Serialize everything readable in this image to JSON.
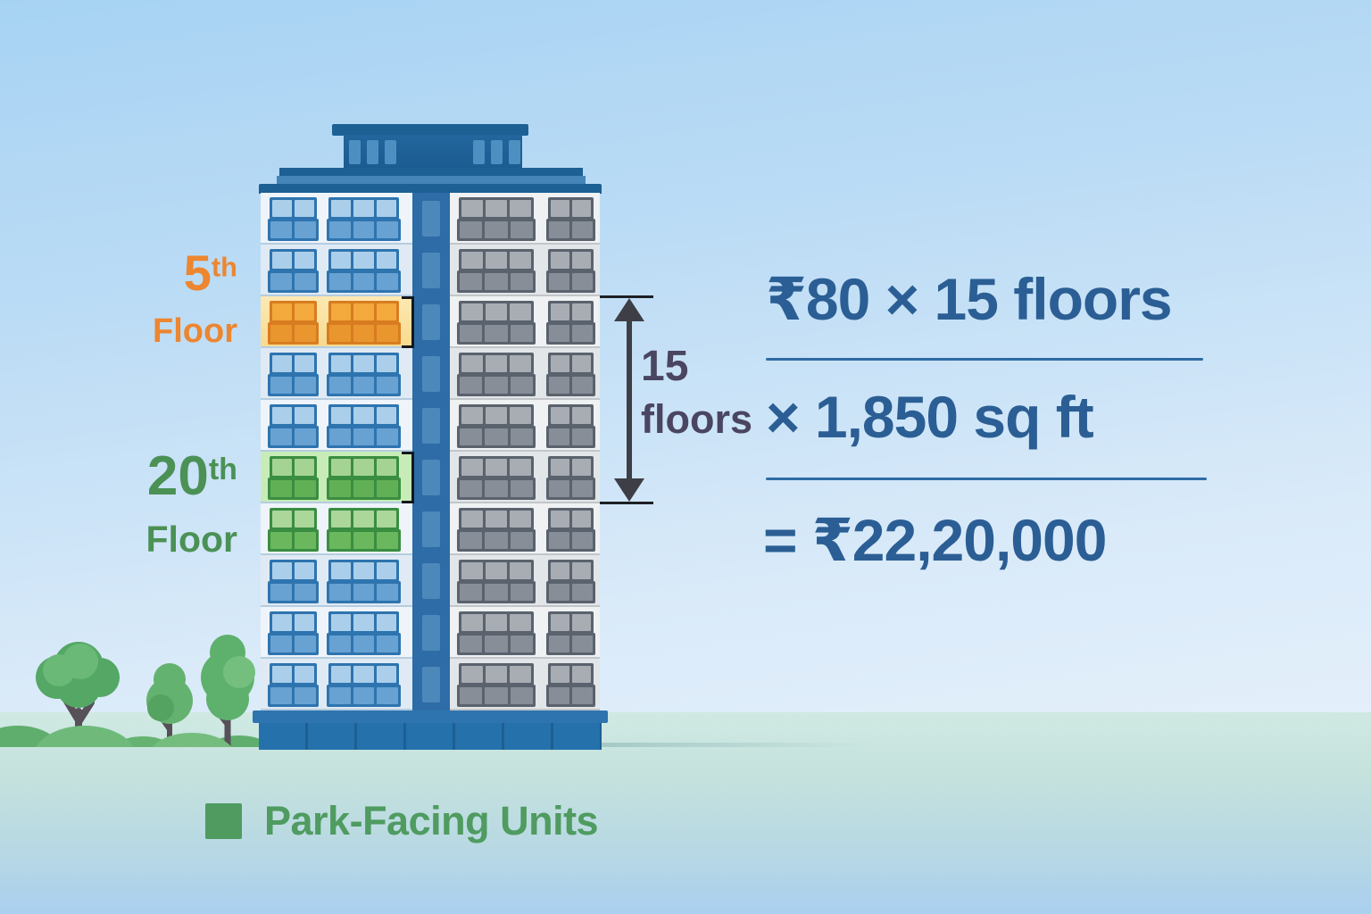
{
  "labels": {
    "floor5": {
      "number": "5",
      "suffix": "th",
      "word": "Floor"
    },
    "floor20": {
      "number": "20",
      "suffix": "th",
      "word": "Floor"
    }
  },
  "dimension": {
    "value": "15",
    "unit": "floors"
  },
  "formula": {
    "line1": "₹80 × 15 floors",
    "line2": "× 1,850 sq ft",
    "line3": "= ₹22,20,000"
  },
  "legend": {
    "label": "Park-Facing Units",
    "swatch_color": "#4f9b60"
  },
  "building": {
    "left_wing": {
      "floors": [
        "blue",
        "blue",
        "orange",
        "blue",
        "blue",
        "green_hl",
        "green",
        "blue",
        "blue",
        "blue"
      ]
    },
    "right_wing": {
      "floors": [
        "gray",
        "gray",
        "gray",
        "gray",
        "gray",
        "gray",
        "gray",
        "gray",
        "gray",
        "gray"
      ]
    },
    "column": {
      "floors": 10
    }
  },
  "colors": {
    "sky_top": "#a7d3f3",
    "sky_bottom": "#ecf4fc",
    "ground_top": "#d0e9e3",
    "ground_bottom": "#aacfef",
    "roof_blue": "#1d6094",
    "column_blue": "#2d6ca6",
    "base_blue": "#2571ac",
    "facade_left": "#eef4fa",
    "facade_right": "#eff1f3",
    "window_blue_frame": "#2e74af",
    "window_blue_top": "#abcfea",
    "window_blue_bottom": "#67a2d3",
    "window_gray_frame": "#5a626d",
    "window_gray_top": "#a8adb4",
    "window_gray_bottom": "#878e97",
    "highlight_orange_bg": "#f9dd9e",
    "highlight_orange_frame": "#d87c20",
    "highlight_green_bg": "#c8ecb8",
    "highlight_green_frame": "#3a8e41",
    "label_orange": "#ec8630",
    "label_green": "#4b9156",
    "formula_blue": "#2b5e94",
    "dimension_text": "#4a4561",
    "arrow_dark": "#3e3e47",
    "legend_green": "#4f9b60",
    "tree_green": "#63b271",
    "tree_trunk": "#575058"
  }
}
